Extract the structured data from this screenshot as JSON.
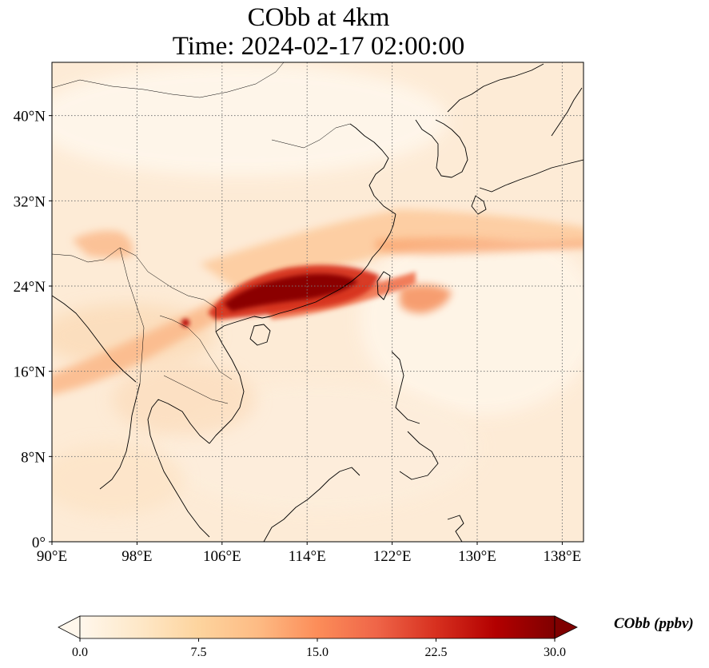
{
  "title": {
    "line1": "CObb at 4km",
    "line2": "Time: 2024-02-17 02:00:00"
  },
  "map": {
    "projection": "PlateCarree",
    "lon_range": [
      90,
      140
    ],
    "lat_range": [
      0,
      45
    ],
    "x_ticks": [
      {
        "lon": 90,
        "label": "90°E"
      },
      {
        "lon": 98,
        "label": "98°E"
      },
      {
        "lon": 106,
        "label": "106°E"
      },
      {
        "lon": 114,
        "label": "114°E"
      },
      {
        "lon": 122,
        "label": "122°E"
      },
      {
        "lon": 130,
        "label": "130°E"
      },
      {
        "lon": 138,
        "label": "138°E"
      }
    ],
    "y_ticks": [
      {
        "lat": 0,
        "label": "0°"
      },
      {
        "lat": 8,
        "label": "8°N"
      },
      {
        "lat": 16,
        "label": "16°N"
      },
      {
        "lat": 24,
        "label": "24°N"
      },
      {
        "lat": 32,
        "label": "32°N"
      },
      {
        "lat": 40,
        "label": "40°N"
      }
    ],
    "gridlines": "dotted",
    "colormap": "OrRd",
    "plume_features": [
      {
        "name": "main-plume-core",
        "lon": 111.5,
        "lat": 24.2,
        "value": 30
      },
      {
        "name": "eastward-plume-band",
        "lon": 130,
        "lat": 28.5,
        "value": 9
      },
      {
        "name": "southeast-plume-lobe",
        "lon": 125.5,
        "lat": 22.5,
        "value": 12
      },
      {
        "name": "western-plume-band",
        "lon": 92,
        "lat": 16,
        "value": 8
      }
    ]
  },
  "colorbar": {
    "min": 0.0,
    "max": 30.0,
    "ticks": [
      "0.0",
      "7.5",
      "15.0",
      "22.5",
      "30.0"
    ],
    "extend": "both",
    "label": "CObb (ppbv)",
    "colors": [
      "#fff7ec",
      "#fee8c8",
      "#fdd49e",
      "#fdbb84",
      "#fc8d59",
      "#ef6548",
      "#d7301f",
      "#b30000",
      "#7f0000"
    ]
  }
}
